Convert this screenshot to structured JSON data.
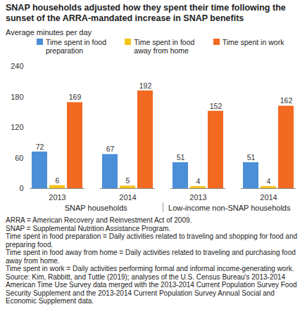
{
  "chart_data": {
    "type": "bar",
    "title": "SNAP households adjusted how they spent their time following the sunset of the ARRA-mandated increase in SNAP benefits",
    "ylabel": "Average minutes per day",
    "categories": [
      "2013",
      "2014",
      "2013",
      "2014"
    ],
    "groups": [
      "SNAP households",
      "Low-income non-SNAP households"
    ],
    "series": [
      {
        "name": "Time spent in food preparation",
        "color": "#4a8fd8",
        "values": [
          72,
          67,
          51,
          51
        ]
      },
      {
        "name": "Time spent in food away from home",
        "color": "#f5c216",
        "values": [
          6,
          5,
          4,
          4
        ]
      },
      {
        "name": "Time spent in work",
        "color": "#f26a21",
        "values": [
          169,
          192,
          152,
          162
        ]
      }
    ],
    "ylim": [
      0,
      240
    ],
    "yticks": [
      0,
      60,
      120,
      180,
      240
    ],
    "grid": false,
    "data_labels": true,
    "legend": "top",
    "notes": [
      "ARRA = American Recovery and Reinvestment Act of 2009.",
      "SNAP = Supplemental Nutrition Assistance Program.",
      "Time spent in food preparation = Daily activities related to traveling and shopping for food and preparing food.",
      "Time spent in food away from home = Daily activities related to traveling and purchasing food away from home.",
      "Time spent in work = Daily activities performing formal and informal income-generating work.",
      "Source: Kim, Rabbitt, and Tuttle (2019); analyses of the U.S. Census Bureau's 2013-2014 American Time Use Survey data merged with the 2013-2014 Current Population Survey Food Security Supplement and the 2013-2014 Current Population Survey Annual Social and Economic Supplement data."
    ]
  }
}
